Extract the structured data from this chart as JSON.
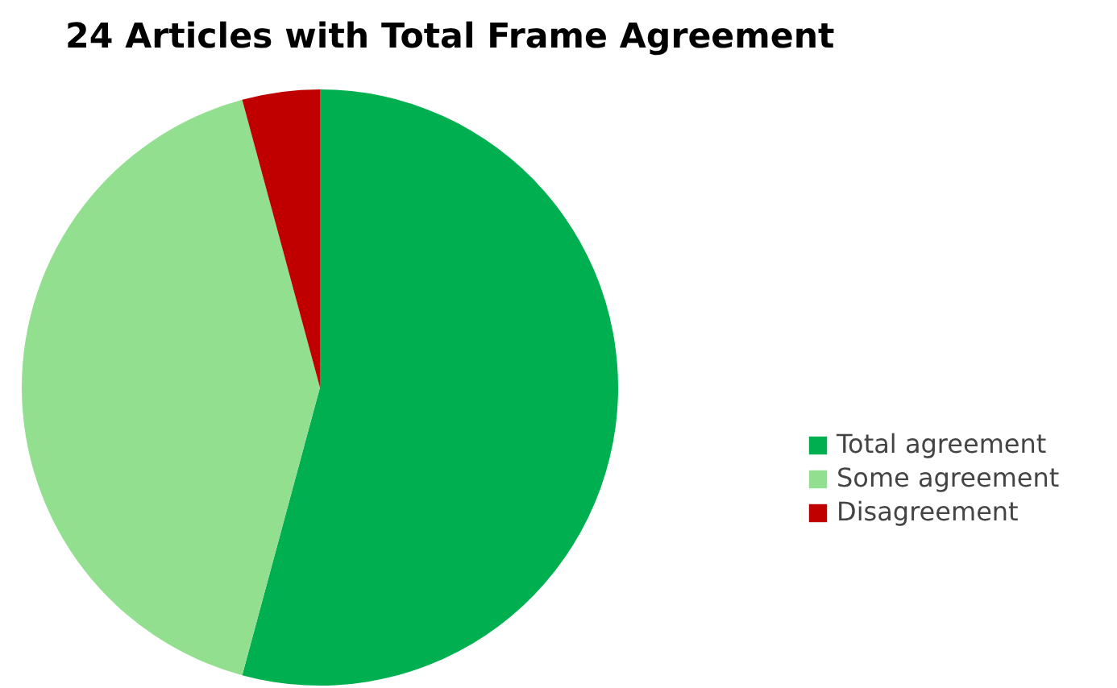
{
  "chart_data": {
    "type": "pie",
    "title": "24 Articles with Total Frame Agreement",
    "categories": [
      "Total agreement",
      "Some agreement",
      "Disagreement"
    ],
    "values": [
      54.2,
      41.6,
      4.2
    ],
    "colors": [
      "#00b050",
      "#92e08f",
      "#c00000"
    ],
    "legend": "right"
  }
}
